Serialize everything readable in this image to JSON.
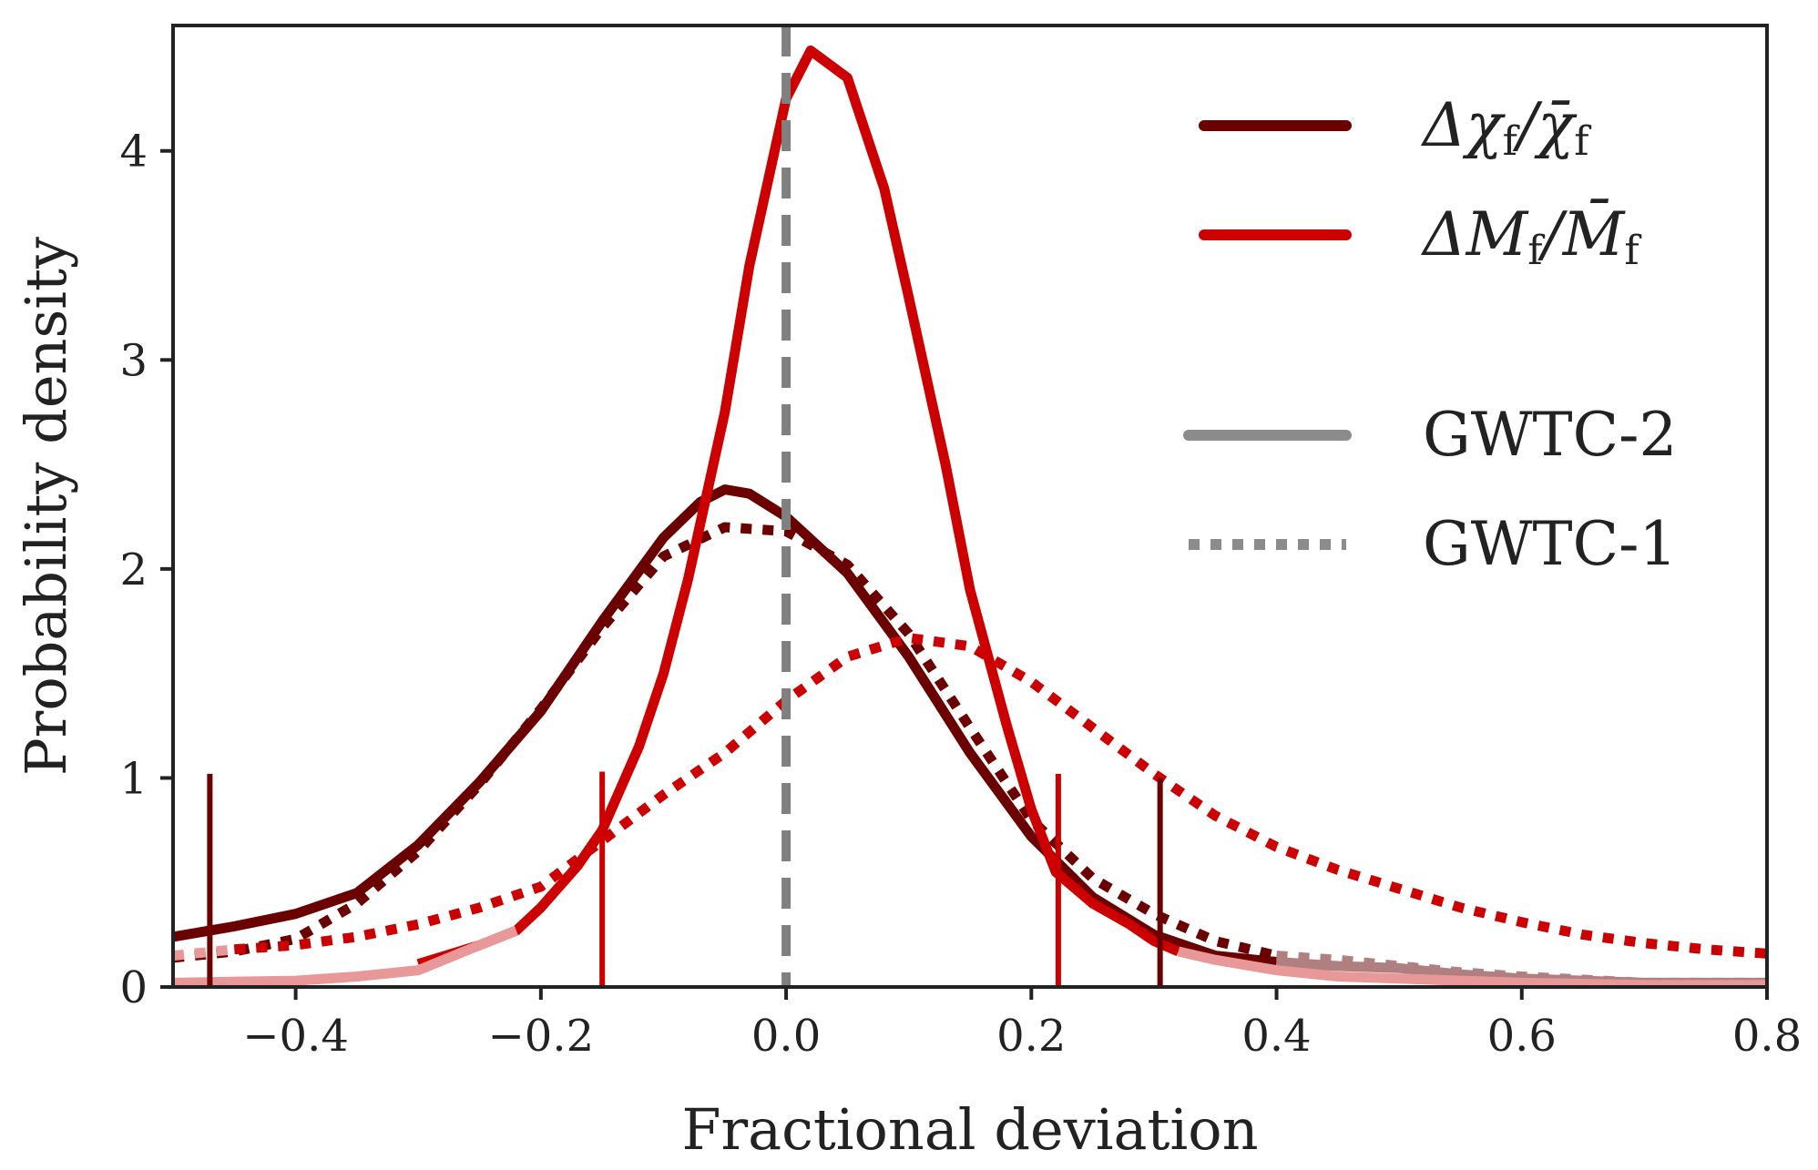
{
  "chart_data": {
    "type": "line",
    "title": "",
    "xlabel": "Fractional deviation",
    "ylabel": "Probability density",
    "xlim": [
      -0.5,
      0.8
    ],
    "ylim": [
      0,
      4.6
    ],
    "xticks": [
      -0.4,
      -0.2,
      0.0,
      0.2,
      0.4,
      0.6,
      0.8
    ],
    "xtick_labels": [
      "−0.4",
      "−0.2",
      "0.0",
      "0.2",
      "0.4",
      "0.6",
      "0.8"
    ],
    "yticks": [
      0,
      1,
      2,
      3,
      4
    ],
    "ytick_labels": [
      "0",
      "1",
      "2",
      "3",
      "4"
    ],
    "grid": false,
    "reference_line": {
      "x": 0.0,
      "style": "dashed",
      "color": "#808080"
    },
    "legend": {
      "placement": "top-right",
      "entries": [
        {
          "name": "chi",
          "label_main": "Δχ",
          "label_sub": "f",
          "label_sep": "/",
          "label_bar": "χ̄",
          "label_bar_sub": "f",
          "color": "#6b0000",
          "style": "solid"
        },
        {
          "name": "mass",
          "label_main": "ΔM",
          "label_sub": "f",
          "label_sep": "/",
          "label_bar": "M̄",
          "label_bar_sub": "f",
          "color": "#cc0000",
          "style": "solid"
        },
        {
          "name": "gwtc2",
          "label": "GWTC-2",
          "color": "#8c8c8c",
          "style": "solid"
        },
        {
          "name": "gwtc1",
          "label": "GWTC-1",
          "color": "#8c8c8c",
          "style": "dotted"
        }
      ]
    },
    "series": [
      {
        "name": "chi_f GWTC-2",
        "color": "#6b0000",
        "style": "solid",
        "x": [
          -0.5,
          -0.45,
          -0.4,
          -0.35,
          -0.3,
          -0.25,
          -0.2,
          -0.15,
          -0.1,
          -0.07,
          -0.05,
          -0.03,
          0.0,
          0.05,
          0.1,
          0.15,
          0.2,
          0.25,
          0.3,
          0.35,
          0.4
        ],
        "y": [
          0.24,
          0.29,
          0.35,
          0.45,
          0.68,
          0.98,
          1.32,
          1.75,
          2.15,
          2.32,
          2.38,
          2.36,
          2.25,
          1.98,
          1.58,
          1.12,
          0.72,
          0.43,
          0.25,
          0.15,
          0.12
        ]
      },
      {
        "name": "chi_f GWTC-2 tail",
        "color": "#b07f7f",
        "style": "solid",
        "x": [
          0.4,
          0.45,
          0.5,
          0.55,
          0.6,
          0.65,
          0.7,
          0.8
        ],
        "y": [
          0.12,
          0.1,
          0.09,
          0.06,
          0.04,
          0.03,
          0.02,
          0.02
        ]
      },
      {
        "name": "chi_f GWTC-1",
        "color": "#6b0000",
        "style": "dotted",
        "x": [
          -0.5,
          -0.45,
          -0.4,
          -0.35,
          -0.3,
          -0.25,
          -0.2,
          -0.15,
          -0.1,
          -0.05,
          0.0,
          0.05,
          0.1,
          0.15,
          0.2,
          0.25,
          0.3,
          0.35,
          0.4
        ],
        "y": [
          0.14,
          0.17,
          0.23,
          0.4,
          0.65,
          0.97,
          1.33,
          1.72,
          2.06,
          2.2,
          2.18,
          2.02,
          1.69,
          1.24,
          0.8,
          0.52,
          0.35,
          0.22,
          0.15
        ]
      },
      {
        "name": "chi_f GWTC-1 tail",
        "color": "#b07f7f",
        "style": "dotted",
        "x": [
          0.4,
          0.45,
          0.5,
          0.55,
          0.6,
          0.7,
          0.8
        ],
        "y": [
          0.15,
          0.13,
          0.1,
          0.07,
          0.05,
          0.02,
          0.02
        ]
      },
      {
        "name": "M_f GWTC-2",
        "color": "#cc0000",
        "style": "solid",
        "x": [
          -0.3,
          -0.25,
          -0.22,
          -0.2,
          -0.17,
          -0.15,
          -0.12,
          -0.1,
          -0.08,
          -0.05,
          -0.03,
          0.0,
          0.02,
          0.05,
          0.08,
          0.1,
          0.13,
          0.15,
          0.18,
          0.2,
          0.22,
          0.25,
          0.28,
          0.3,
          0.32
        ],
        "y": [
          0.11,
          0.2,
          0.27,
          0.38,
          0.58,
          0.75,
          1.15,
          1.5,
          1.95,
          2.75,
          3.45,
          4.25,
          4.48,
          4.35,
          3.82,
          3.3,
          2.5,
          1.9,
          1.25,
          0.85,
          0.55,
          0.4,
          0.3,
          0.22,
          0.17
        ]
      },
      {
        "name": "M_f GWTC-2 tail",
        "color": "#e89898",
        "style": "solid",
        "x": [
          -0.5,
          -0.4,
          -0.35,
          -0.3,
          -0.25,
          -0.22
        ],
        "y": [
          0.02,
          0.03,
          0.05,
          0.08,
          0.2,
          0.27
        ]
      },
      {
        "name": "M_f GWTC-2 right tail",
        "color": "#e89898",
        "style": "solid",
        "x": [
          0.32,
          0.35,
          0.4,
          0.45,
          0.5,
          0.55,
          0.6,
          0.7,
          0.8
        ],
        "y": [
          0.17,
          0.13,
          0.08,
          0.05,
          0.04,
          0.03,
          0.02,
          0.01,
          0.01
        ]
      },
      {
        "name": "M_f GWTC-1",
        "color": "#cc0000",
        "style": "dotted",
        "x": [
          -0.45,
          -0.4,
          -0.35,
          -0.3,
          -0.25,
          -0.2,
          -0.15,
          -0.1,
          -0.05,
          0.0,
          0.05,
          0.1,
          0.15,
          0.2,
          0.25,
          0.3,
          0.35,
          0.4,
          0.45,
          0.5,
          0.55,
          0.6,
          0.65,
          0.7,
          0.75,
          0.8
        ],
        "y": [
          0.18,
          0.2,
          0.24,
          0.3,
          0.38,
          0.48,
          0.7,
          0.92,
          1.12,
          1.37,
          1.58,
          1.67,
          1.63,
          1.46,
          1.24,
          1.02,
          0.82,
          0.67,
          0.56,
          0.47,
          0.38,
          0.31,
          0.25,
          0.21,
          0.18,
          0.16
        ]
      },
      {
        "name": "M_f GWTC-1 tail",
        "color": "#e89898",
        "style": "dotted",
        "x": [
          -0.5,
          -0.45
        ],
        "y": [
          0.15,
          0.18
        ]
      }
    ],
    "interval_markers": [
      {
        "x": -0.47,
        "height": 1.02,
        "color": "#6b0000"
      },
      {
        "x": 0.305,
        "height": 1.0,
        "color": "#6b0000"
      },
      {
        "x": -0.15,
        "height": 1.03,
        "color": "#cc0000"
      },
      {
        "x": 0.222,
        "height": 1.02,
        "color": "#cc0000"
      }
    ]
  }
}
